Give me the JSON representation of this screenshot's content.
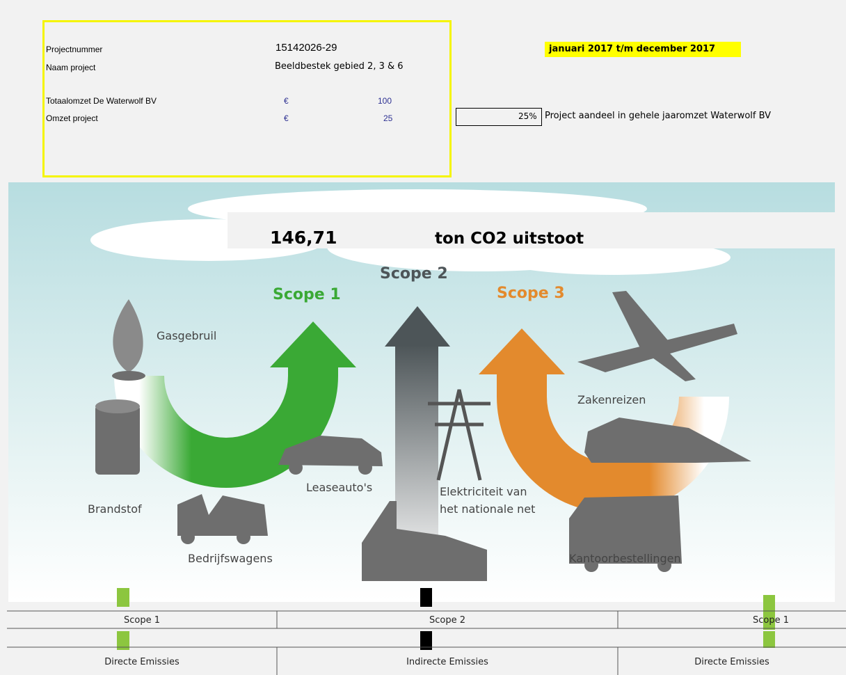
{
  "header": {
    "project_number_label": "Projectnummer",
    "project_number": "15142026-29",
    "project_name_label": "Naam project",
    "project_name": "Beeldbestek gebied 2, 3 & 6",
    "total_revenue_label": "Totaalomzet De Waterwolf BV",
    "total_revenue_currency": "€",
    "total_revenue": "100",
    "project_revenue_label": "Omzet project",
    "project_revenue_currency": "€",
    "project_revenue": "25",
    "period": "januari 2017  t/m december 2017",
    "share": "25%",
    "share_label": "Project aandeel in gehele jaaromzet Waterwolf BV"
  },
  "infographic": {
    "total": "146,71",
    "unit": "ton CO2 uitstoot",
    "scopes": [
      "Scope 1",
      "Scope 2",
      "Scope 3"
    ],
    "labels": {
      "gas": "Gasgebruil",
      "fuel": "Brandstof",
      "company_vehicles": "Bedrijfswagens",
      "lease_cars": "Leaseauto's",
      "electricity_1": "Elektriciteit van",
      "electricity_2": "het nationale net",
      "business_travel": "Zakenreizen",
      "office_deliveries": "Kantoorbestellingen"
    }
  },
  "table": {
    "rows": [
      [
        "Scope 1",
        "Scope 2",
        "Scope 1"
      ],
      [
        "Directe Emissies",
        "Indirecte Emissies",
        "Directe Emissies"
      ]
    ]
  }
}
